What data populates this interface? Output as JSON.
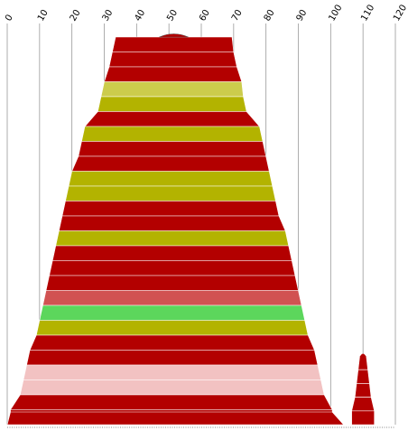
{
  "chart_data": {
    "type": "area",
    "title": "",
    "xlabel": "",
    "ylabel": "",
    "xlim": [
      0,
      120
    ],
    "x_ticks": [
      0,
      10,
      20,
      30,
      40,
      50,
      60,
      70,
      80,
      90,
      100,
      110,
      120
    ],
    "grid": "vertical",
    "bands": [
      {
        "left": 33.5,
        "right": 69.5,
        "color": "#b30000"
      },
      {
        "left": 32.5,
        "right": 70.0,
        "color": "#b30000"
      },
      {
        "left": 31.5,
        "right": 71.0,
        "color": "#b30000"
      },
      {
        "left": 30.0,
        "right": 72.5,
        "color": "#cccc4c"
      },
      {
        "left": 29.0,
        "right": 73.0,
        "color": "#b3b300"
      },
      {
        "left": 28.0,
        "right": 74.0,
        "color": "#b30000"
      },
      {
        "left": 24.0,
        "right": 78.0,
        "color": "#b3b300"
      },
      {
        "left": 23.0,
        "right": 79.0,
        "color": "#b30000"
      },
      {
        "left": 22.0,
        "right": 80.0,
        "color": "#b30000"
      },
      {
        "left": 20.0,
        "right": 81.0,
        "color": "#b3b300"
      },
      {
        "left": 19.0,
        "right": 82.0,
        "color": "#b3b300"
      },
      {
        "left": 18.0,
        "right": 83.0,
        "color": "#b30000"
      },
      {
        "left": 17.0,
        "right": 84.0,
        "color": "#b30000"
      },
      {
        "left": 16.0,
        "right": 86.0,
        "color": "#b3b300"
      },
      {
        "left": 15.0,
        "right": 87.0,
        "color": "#b30000"
      },
      {
        "left": 14.0,
        "right": 88.0,
        "color": "#b30000"
      },
      {
        "left": 13.0,
        "right": 89.0,
        "color": "#b30000"
      },
      {
        "left": 12.0,
        "right": 90.0,
        "color": "#d15252"
      },
      {
        "left": 11.0,
        "right": 91.0,
        "color": "#5cd65c"
      },
      {
        "left": 10.0,
        "right": 92.0,
        "color": "#b3b300"
      },
      {
        "left": 9.0,
        "right": 93.0,
        "color": "#b30000"
      },
      {
        "left": 7.0,
        "right": 95.0,
        "color": "#b30000"
      },
      {
        "left": 6.0,
        "right": 96.0,
        "color": "#f2c2c2"
      },
      {
        "left": 5.0,
        "right": 97.0,
        "color": "#f2c2c2"
      },
      {
        "left": 4.0,
        "right": 98.0,
        "color": "#b30000"
      },
      {
        "left": 1.0,
        "right": 100.5,
        "color": "#b30000"
      }
    ],
    "secondary_bands": [
      {
        "left": 109.0,
        "right": 111.0,
        "color": "#b30000"
      },
      {
        "left": 108.5,
        "right": 111.5,
        "color": "#b30000"
      },
      {
        "left": 108.0,
        "right": 112.0,
        "color": "#b30000"
      },
      {
        "left": 107.5,
        "right": 112.5,
        "color": "#b30000"
      },
      {
        "left": 106.5,
        "right": 113.5,
        "color": "#b30000"
      }
    ],
    "cap": {
      "left": 47.0,
      "right": 56.0,
      "color": "#b30000"
    }
  }
}
